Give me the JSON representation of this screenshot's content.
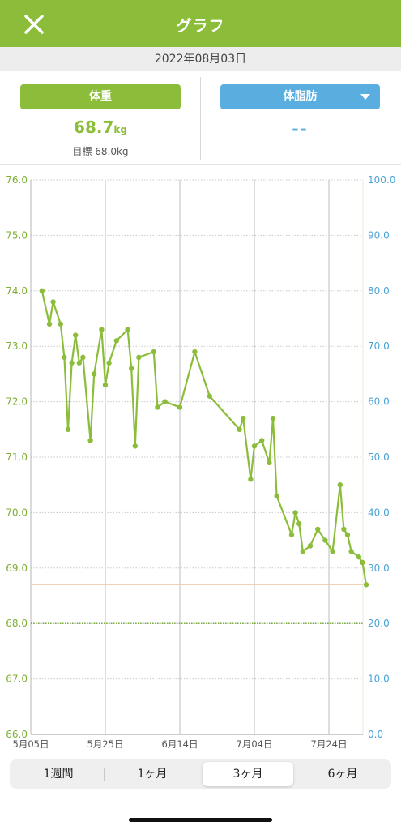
{
  "header": {
    "title": "グラフ",
    "close_icon": "close-icon"
  },
  "date": "2022年08月03日",
  "weight_panel": {
    "button_label": "体重",
    "value": "68.7",
    "unit": "kg",
    "goal_label": "目標",
    "goal_value": "68.0kg"
  },
  "fat_panel": {
    "button_label": "体脂肪",
    "value": "--",
    "dropdown_icon": "caret-down-icon"
  },
  "colors": {
    "green": "#8cbd3a",
    "blue": "#5aaedf",
    "goal_line": "#6fa52e",
    "current_line": "#f0c9a8"
  },
  "segments": [
    {
      "label": "1週間",
      "active": false
    },
    {
      "label": "1ヶ月",
      "active": false
    },
    {
      "label": "3ヶ月",
      "active": true
    },
    {
      "label": "6ヶ月",
      "active": false
    }
  ],
  "chart_data": {
    "type": "line",
    "title": "",
    "xlabel": "",
    "ylabel": "",
    "x_ticks": [
      "5月05日",
      "5月25日",
      "6月14日",
      "7月04日",
      "7月24日"
    ],
    "y_left_ticks": [
      "76.0",
      "75.0",
      "74.0",
      "73.0",
      "72.0",
      "71.0",
      "70.0",
      "69.0",
      "68.0",
      "67.0",
      "66.0"
    ],
    "y_right_ticks": [
      "100.0",
      "90.0",
      "80.0",
      "70.0",
      "60.0",
      "50.0",
      "40.0",
      "30.0",
      "20.0",
      "10.0",
      "0.0"
    ],
    "ylim_left": [
      66,
      76
    ],
    "ylim_right": [
      0,
      100
    ],
    "xlim": [
      "2022-05-05",
      "2022-08-03"
    ],
    "goal": 68.0,
    "current": 68.7,
    "grid": true,
    "series": [
      {
        "line_color": "#8cbd3a",
        "x": [
          "2022-05-08",
          "2022-05-10",
          "2022-05-11",
          "2022-05-13",
          "2022-05-14",
          "2022-05-15",
          "2022-05-16",
          "2022-05-17",
          "2022-05-18",
          "2022-05-19",
          "2022-05-21",
          "2022-05-22",
          "2022-05-24",
          "2022-05-25",
          "2022-05-26",
          "2022-05-28",
          "2022-05-31",
          "2022-06-01",
          "2022-06-02",
          "2022-06-03",
          "2022-06-07",
          "2022-06-08",
          "2022-06-10",
          "2022-06-14",
          "2022-06-18",
          "2022-06-22",
          "2022-06-30",
          "2022-07-01",
          "2022-07-03",
          "2022-07-04",
          "2022-07-06",
          "2022-07-08",
          "2022-07-09",
          "2022-07-10",
          "2022-07-14",
          "2022-07-15",
          "2022-07-16",
          "2022-07-17",
          "2022-07-19",
          "2022-07-21",
          "2022-07-23",
          "2022-07-25",
          "2022-07-27",
          "2022-07-28",
          "2022-07-29",
          "2022-07-30",
          "2022-08-01",
          "2022-08-02",
          "2022-08-03"
        ],
        "values": [
          74.0,
          73.4,
          73.8,
          73.4,
          72.8,
          71.5,
          72.7,
          73.2,
          72.7,
          72.8,
          71.3,
          72.5,
          73.3,
          72.3,
          72.7,
          73.1,
          73.3,
          72.6,
          71.2,
          72.8,
          72.9,
          71.9,
          72.0,
          71.9,
          72.9,
          72.1,
          71.5,
          71.7,
          70.6,
          71.2,
          71.3,
          70.9,
          71.7,
          70.3,
          69.6,
          70.0,
          69.8,
          69.3,
          69.4,
          69.7,
          69.5,
          69.3,
          70.5,
          69.7,
          69.6,
          69.3,
          69.2,
          69.1,
          68.7
        ]
      }
    ]
  }
}
